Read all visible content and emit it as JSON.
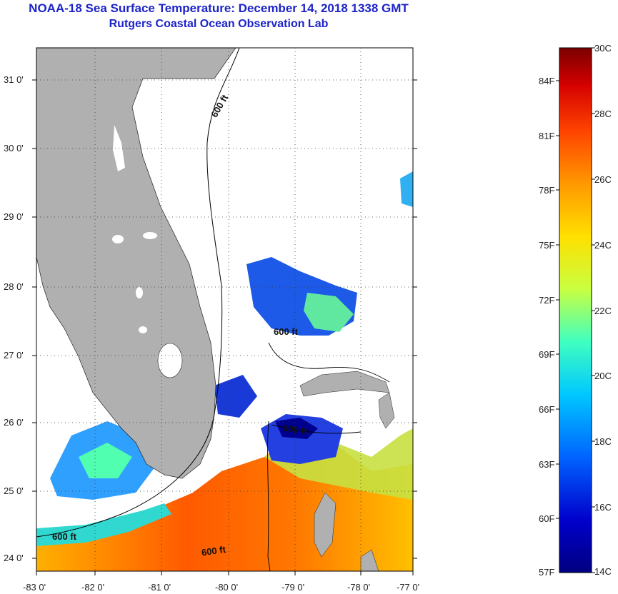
{
  "title": {
    "line1": "NOAA-18 Sea Surface Temperature:  December 14, 2018 1338 GMT",
    "line2": "Rutgers Coastal Ocean Observation Lab"
  },
  "map": {
    "lon_labels": [
      "-83 0'",
      "-82 0'",
      "-81 0'",
      "-80 0'",
      "-79 0'",
      "-78 0'",
      "-77 0'"
    ],
    "lat_labels": [
      "31 0'",
      "30 0'",
      "29 0'",
      "28 0'",
      "27 0'",
      "26 0'",
      "25 0'",
      "24 0'"
    ],
    "contour_label": "600 ft",
    "land_color": "#b0b0b0",
    "cloud_color": "#ffffff"
  },
  "colorbar": {
    "celsius_labels": [
      "30C",
      "28C",
      "26C",
      "24C",
      "22C",
      "20C",
      "18C",
      "16C",
      "14C"
    ],
    "fahrenheit_labels": [
      "84F",
      "81F",
      "78F",
      "75F",
      "72F",
      "69F",
      "66F",
      "63F",
      "60F",
      "57F"
    ],
    "colors": [
      "#7a0000",
      "#d40000",
      "#ff4400",
      "#ff9900",
      "#ffe000",
      "#c8ff40",
      "#40ffc0",
      "#00c8ff",
      "#0064ff",
      "#0000cc",
      "#000080"
    ]
  }
}
